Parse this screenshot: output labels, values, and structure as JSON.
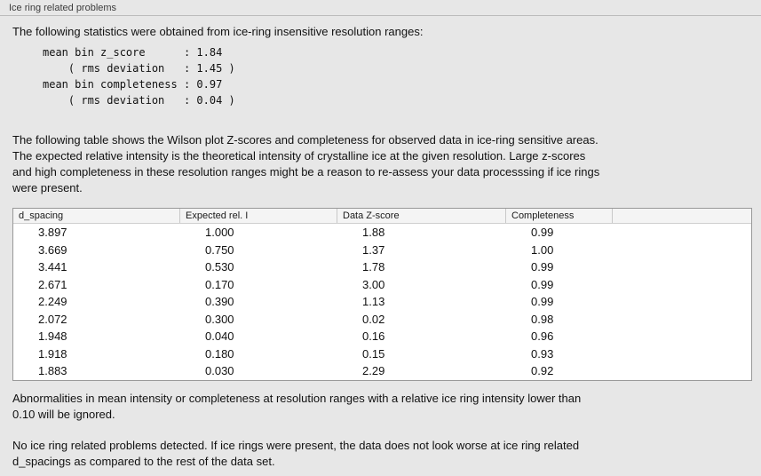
{
  "panel": {
    "title": "Ice ring related problems",
    "intro": "The following statistics were obtained from ice-ring insensitive resolution ranges:",
    "stats_block": "mean bin z_score      : 1.84\n    ( rms deviation   : 1.45 )\nmean bin completeness : 0.97\n    ( rms deviation   : 0.04 )",
    "stats": {
      "mean_bin_z_score": "1.84",
      "z_score_rms_deviation": "1.45",
      "mean_bin_completeness": "0.97",
      "completeness_rms_deviation": "0.04"
    },
    "description": "The following table shows the Wilson plot Z-scores and completeness for observed data in ice-ring sensitive areas.\nThe expected relative intensity is the theoretical intensity of crystalline ice at the given resolution. Large z-scores\nand high completeness in these resolution ranges might be a reason to re-assess your data processsing if ice rings\nwere present.",
    "table": {
      "columns": [
        "d_spacing",
        "Expected rel. I",
        "Data Z-score",
        "Completeness"
      ],
      "rows": [
        [
          "3.897",
          "1.000",
          "1.88",
          "0.99"
        ],
        [
          "3.669",
          "0.750",
          "1.37",
          "1.00"
        ],
        [
          "3.441",
          "0.530",
          "1.78",
          "0.99"
        ],
        [
          "2.671",
          "0.170",
          "3.00",
          "0.99"
        ],
        [
          "2.249",
          "0.390",
          "1.13",
          "0.99"
        ],
        [
          "2.072",
          "0.300",
          "0.02",
          "0.98"
        ],
        [
          "1.948",
          "0.040",
          "0.16",
          "0.96"
        ],
        [
          "1.918",
          "0.180",
          "0.15",
          "0.93"
        ],
        [
          "1.883",
          "0.030",
          "2.29",
          "0.92"
        ]
      ]
    },
    "note1": "Abnormalities in mean intensity or completeness at resolution ranges with a relative ice ring intensity lower than\n0.10 will be ignored.",
    "note2": "No ice ring related problems detected. If ice rings were present, the data does not look worse at ice ring related\nd_spacings as compared to the rest of the data set."
  }
}
